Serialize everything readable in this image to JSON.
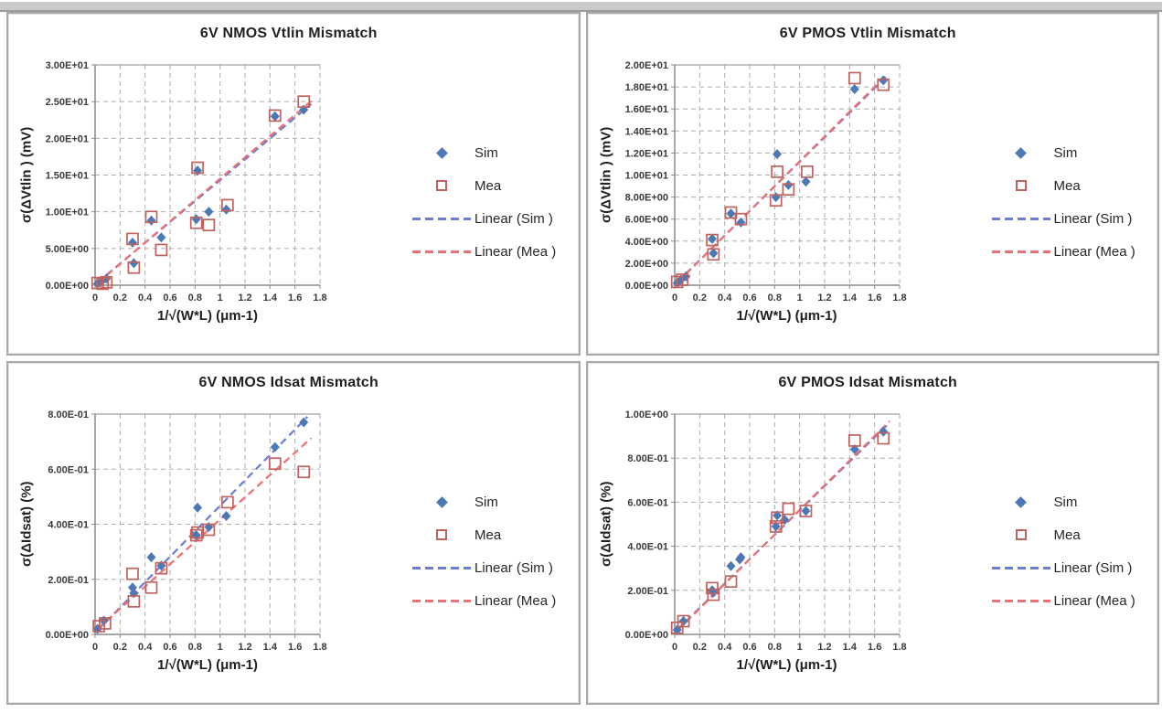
{
  "style": {
    "sim_color": "#4C79B5",
    "mea_color": "#C0625E",
    "trend_sim_color": "#6B7CD6",
    "trend_mea_color": "#EE7070",
    "grid_color": "#ADADAD",
    "axis_color": "#8A8A8A",
    "title_color": "#1F1F1F",
    "tick_color": "#3A3A3A",
    "legend_text_color": "#262626",
    "panel_border_color": "#A8A8A8",
    "top_strip_color": "#CACACA"
  },
  "legend": {
    "position": "right",
    "items": [
      {
        "label": "Sim",
        "icon": "sim-diamond-icon"
      },
      {
        "label": "Mea",
        "icon": "mea-square-icon"
      },
      {
        "label": "Linear (Sim )",
        "icon": "linear-sim-dash-icon"
      },
      {
        "label": "Linear (Mea )",
        "icon": "linear-mea-dash-icon"
      }
    ]
  },
  "chart_data": [
    {
      "type": "scatter",
      "title": "6V NMOS Vtlin Mismatch",
      "xlabel": "1/√(W*L) (μm-1)",
      "ylabel": "σ(ΔVtlin ) (mV)",
      "xlim": [
        0,
        1.8
      ],
      "xtick_step": 0.2,
      "ylim": [
        0,
        30
      ],
      "ytick_step": 5,
      "ytick_format": "exponential",
      "grid": true,
      "series": [
        {
          "name": "Sim",
          "marker": "diamond",
          "points": [
            [
              0.02,
              0.2
            ],
            [
              0.05,
              0.5
            ],
            [
              0.09,
              0.9
            ],
            [
              0.3,
              5.8
            ],
            [
              0.31,
              3.0
            ],
            [
              0.45,
              8.8
            ],
            [
              0.53,
              6.5
            ],
            [
              0.81,
              9.0
            ],
            [
              0.82,
              15.6
            ],
            [
              0.91,
              10.0
            ],
            [
              1.05,
              10.3
            ],
            [
              1.44,
              23.0
            ],
            [
              1.67,
              23.9
            ]
          ]
        },
        {
          "name": "Mea",
          "marker": "open-square",
          "points": [
            [
              0.02,
              0.3
            ],
            [
              0.06,
              0.2
            ],
            [
              0.09,
              0.4
            ],
            [
              0.3,
              6.3
            ],
            [
              0.31,
              2.4
            ],
            [
              0.45,
              9.3
            ],
            [
              0.53,
              4.8
            ],
            [
              0.81,
              8.5
            ],
            [
              0.82,
              16.0
            ],
            [
              0.91,
              8.2
            ],
            [
              1.06,
              10.9
            ],
            [
              1.44,
              23.1
            ],
            [
              1.67,
              25.0
            ]
          ]
        }
      ],
      "trendlines": [
        {
          "name": "Linear (Sim )",
          "slope": 14.2,
          "intercept": 0.1,
          "x_range": [
            0.02,
            1.73
          ]
        },
        {
          "name": "Linear (Mea )",
          "slope": 14.5,
          "intercept": 0.0,
          "x_range": [
            0.02,
            1.73
          ]
        }
      ]
    },
    {
      "type": "scatter",
      "title": "6V PMOS Vtlin Mismatch",
      "xlabel": "1/√(W*L) (μm-1)",
      "ylabel": "σ(ΔVtlin ) (mV)",
      "xlim": [
        0,
        1.8
      ],
      "xtick_step": 0.2,
      "ylim": [
        0,
        20
      ],
      "ytick_step": 2,
      "ytick_format": "exponential",
      "grid": true,
      "series": [
        {
          "name": "Sim",
          "marker": "diamond",
          "points": [
            [
              0.02,
              0.2
            ],
            [
              0.05,
              0.5
            ],
            [
              0.09,
              0.8
            ],
            [
              0.3,
              4.2
            ],
            [
              0.31,
              2.9
            ],
            [
              0.45,
              6.5
            ],
            [
              0.53,
              5.7
            ],
            [
              0.81,
              8.0
            ],
            [
              0.82,
              11.9
            ],
            [
              0.91,
              9.1
            ],
            [
              1.05,
              9.4
            ],
            [
              1.44,
              17.8
            ],
            [
              1.67,
              18.6
            ]
          ]
        },
        {
          "name": "Mea",
          "marker": "open-square",
          "points": [
            [
              0.02,
              0.3
            ],
            [
              0.06,
              0.5
            ],
            [
              0.3,
              4.1
            ],
            [
              0.31,
              2.8
            ],
            [
              0.45,
              6.6
            ],
            [
              0.53,
              6.0
            ],
            [
              0.81,
              7.7
            ],
            [
              0.82,
              10.3
            ],
            [
              0.91,
              8.7
            ],
            [
              1.06,
              10.3
            ],
            [
              1.44,
              18.8
            ],
            [
              1.67,
              18.2
            ]
          ]
        }
      ],
      "trendlines": [
        {
          "name": "Linear (Sim )",
          "slope": 11.15,
          "intercept": 0.05,
          "x_range": [
            0.02,
            1.7
          ]
        },
        {
          "name": "Linear (Mea )",
          "slope": 11.25,
          "intercept": 0.0,
          "x_range": [
            0.02,
            1.7
          ]
        }
      ]
    },
    {
      "type": "scatter",
      "title": "6V NMOS Idsat Mismatch",
      "xlabel": "1/√(W*L) (μm-1)",
      "ylabel": "σ(ΔIdsat) (%)",
      "xlim": [
        0,
        1.8
      ],
      "xtick_step": 0.2,
      "ylim": [
        0,
        0.8
      ],
      "ytick_step": 0.2,
      "ytick_format": "exponential",
      "grid": true,
      "series": [
        {
          "name": "Sim",
          "marker": "diamond",
          "points": [
            [
              0.02,
              0.02
            ],
            [
              0.07,
              0.05
            ],
            [
              0.3,
              0.17
            ],
            [
              0.31,
              0.15
            ],
            [
              0.45,
              0.28
            ],
            [
              0.53,
              0.25
            ],
            [
              0.81,
              0.36
            ],
            [
              0.82,
              0.46
            ],
            [
              0.91,
              0.39
            ],
            [
              1.05,
              0.43
            ],
            [
              1.44,
              0.68
            ],
            [
              1.67,
              0.77
            ]
          ]
        },
        {
          "name": "Mea",
          "marker": "open-square",
          "points": [
            [
              0.03,
              0.03
            ],
            [
              0.08,
              0.04
            ],
            [
              0.3,
              0.22
            ],
            [
              0.31,
              0.12
            ],
            [
              0.45,
              0.17
            ],
            [
              0.53,
              0.24
            ],
            [
              0.81,
              0.36
            ],
            [
              0.82,
              0.37
            ],
            [
              0.91,
              0.38
            ],
            [
              1.06,
              0.48
            ],
            [
              1.44,
              0.62
            ],
            [
              1.67,
              0.59
            ]
          ]
        }
      ],
      "trendlines": [
        {
          "name": "Linear (Sim )",
          "slope": 0.462,
          "intercept": 0.005,
          "x_range": [
            0.02,
            1.7
          ]
        },
        {
          "name": "Linear (Mea )",
          "slope": 0.405,
          "intercept": 0.012,
          "x_range": [
            0.02,
            1.73
          ]
        }
      ]
    },
    {
      "type": "scatter",
      "title": "6V PMOS Idsat Mismatch",
      "xlabel": "1/√(W*L) (μm-1)",
      "ylabel": "σ(ΔIdsat) (%)",
      "xlim": [
        0,
        1.8
      ],
      "xtick_step": 0.2,
      "ylim": [
        0,
        1.0
      ],
      "ytick_step": 0.2,
      "ytick_format": "exponential",
      "grid": true,
      "series": [
        {
          "name": "Sim",
          "marker": "diamond",
          "points": [
            [
              0.02,
              0.02
            ],
            [
              0.07,
              0.06
            ],
            [
              0.3,
              0.2
            ],
            [
              0.31,
              0.19
            ],
            [
              0.45,
              0.31
            ],
            [
              0.52,
              0.34
            ],
            [
              0.53,
              0.35
            ],
            [
              0.81,
              0.49
            ],
            [
              0.82,
              0.54
            ],
            [
              0.88,
              0.52
            ],
            [
              1.05,
              0.56
            ],
            [
              1.44,
              0.84
            ],
            [
              1.67,
              0.92
            ]
          ]
        },
        {
          "name": "Mea",
          "marker": "open-square",
          "points": [
            [
              0.02,
              0.03
            ],
            [
              0.07,
              0.06
            ],
            [
              0.3,
              0.21
            ],
            [
              0.31,
              0.18
            ],
            [
              0.45,
              0.24
            ],
            [
              0.81,
              0.49
            ],
            [
              0.82,
              0.53
            ],
            [
              0.91,
              0.57
            ],
            [
              1.05,
              0.56
            ],
            [
              1.44,
              0.88
            ],
            [
              1.67,
              0.89
            ]
          ]
        }
      ],
      "trendlines": [
        {
          "name": "Linear (Sim )",
          "slope": 0.553,
          "intercept": 0.01,
          "x_range": [
            0.02,
            1.72
          ]
        },
        {
          "name": "Linear (Mea )",
          "slope": 0.56,
          "intercept": 0.005,
          "x_range": [
            0.02,
            1.72
          ]
        }
      ]
    }
  ]
}
